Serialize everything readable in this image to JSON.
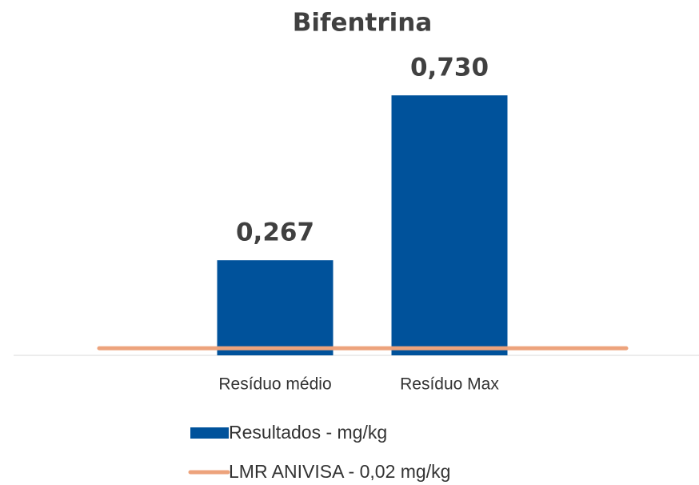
{
  "chart_data": {
    "type": "bar",
    "title": "Bifentrina",
    "categories": [
      "Resíduo médio",
      "Resíduo Max"
    ],
    "series": [
      {
        "name": "Resultados - mg/kg",
        "color": "#00529b",
        "values": [
          0.267,
          0.73
        ],
        "value_labels": [
          "0,267",
          "0,730"
        ]
      },
      {
        "name": "LMR ANIVISA - 0,02 mg/kg",
        "type": "line",
        "color": "#eda37c",
        "values": [
          0.02,
          0.02
        ]
      }
    ],
    "ylim": [
      0,
      0.8
    ]
  }
}
